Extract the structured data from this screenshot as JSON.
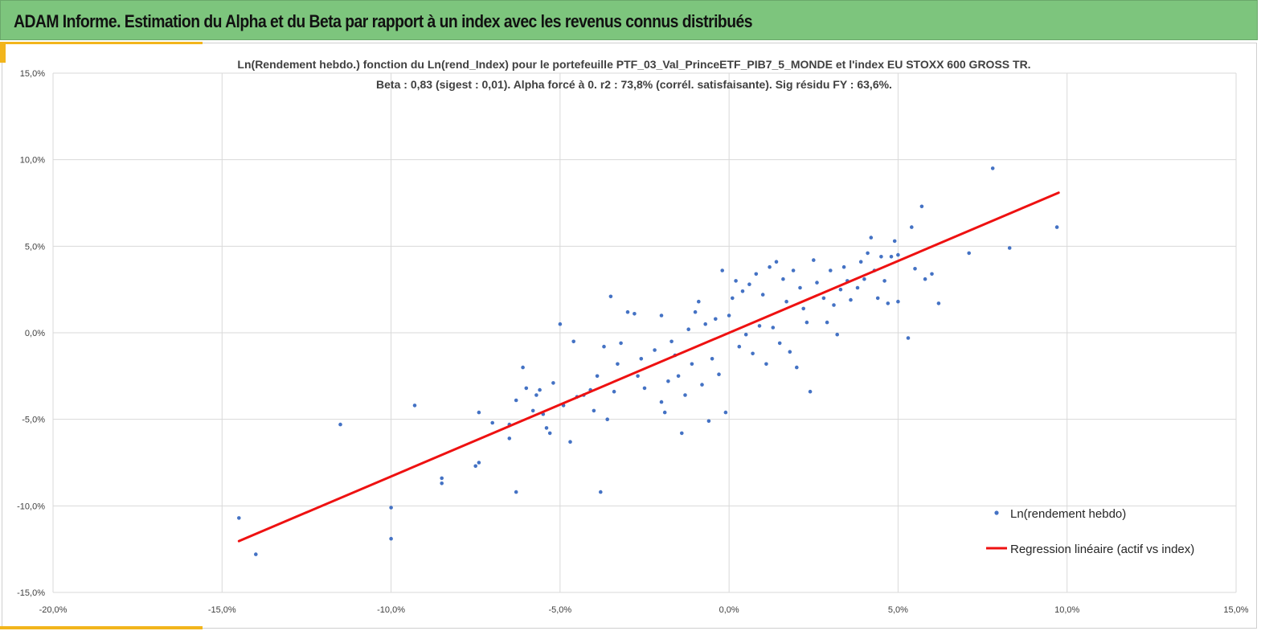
{
  "header": {
    "title": "ADAM Informe. Estimation du Alpha et du Beta par rapport à un index avec les revenus connus distribués"
  },
  "colors": {
    "banner": "#7dc57d",
    "accent": "#f2b51c",
    "points": "#4472c4",
    "regression": "#ee1111",
    "grid": "#d9d9d9"
  },
  "chart_data": {
    "type": "scatter",
    "title": "Ln(Rendement hebdo.) fonction du Ln(rend_Index) pour le portefeuille PTF_03_Val_PrinceETF_PIB7_5_MONDE et l'index EU STOXX 600 GROSS TR.",
    "subtitle": "Beta : 0,83 (sigest : 0,01). Alpha forcé à 0. r2 : 73,8% (corrél. satisfaisante). Sig résidu FY : 63,6%.",
    "xlabel": "",
    "ylabel": "",
    "xlim": [
      -0.2,
      0.15
    ],
    "ylim": [
      -0.15,
      0.15
    ],
    "xticks": [
      -0.2,
      -0.15,
      -0.1,
      -0.05,
      0.0,
      0.05,
      0.1,
      0.15
    ],
    "yticks": [
      -0.15,
      -0.1,
      -0.05,
      0.0,
      0.05,
      0.1,
      0.15
    ],
    "xtick_labels": [
      "-20,0%",
      "-15,0%",
      "-10,0%",
      "-5,0%",
      "0,0%",
      "5,0%",
      "10,0%",
      "15,0%"
    ],
    "ytick_labels": [
      "-15,0%",
      "-10,0%",
      "-5,0%",
      "0,0%",
      "5,0%",
      "10,0%",
      "15,0%"
    ],
    "grid": true,
    "legend_position": "bottom-right",
    "series": [
      {
        "name": "Ln(rendement hebdo)",
        "kind": "points",
        "points": [
          [
            -0.145,
            -0.107
          ],
          [
            -0.14,
            -0.128
          ],
          [
            -0.115,
            -0.053
          ],
          [
            -0.1,
            -0.101
          ],
          [
            -0.1,
            -0.119
          ],
          [
            -0.093,
            -0.042
          ],
          [
            -0.085,
            -0.084
          ],
          [
            -0.085,
            -0.087
          ],
          [
            -0.075,
            -0.077
          ],
          [
            -0.074,
            -0.075
          ],
          [
            -0.074,
            -0.046
          ],
          [
            -0.07,
            -0.052
          ],
          [
            -0.065,
            -0.061
          ],
          [
            -0.065,
            -0.053
          ],
          [
            -0.063,
            -0.092
          ],
          [
            -0.063,
            -0.039
          ],
          [
            -0.061,
            -0.02
          ],
          [
            -0.06,
            -0.032
          ],
          [
            -0.058,
            -0.045
          ],
          [
            -0.057,
            -0.036
          ],
          [
            -0.056,
            -0.033
          ],
          [
            -0.055,
            -0.047
          ],
          [
            -0.054,
            -0.055
          ],
          [
            -0.053,
            -0.058
          ],
          [
            -0.052,
            -0.029
          ],
          [
            -0.05,
            0.005
          ],
          [
            -0.049,
            -0.042
          ],
          [
            -0.047,
            -0.063
          ],
          [
            -0.046,
            -0.005
          ],
          [
            -0.045,
            -0.037
          ],
          [
            -0.043,
            -0.036
          ],
          [
            -0.041,
            -0.033
          ],
          [
            -0.04,
            -0.045
          ],
          [
            -0.039,
            -0.025
          ],
          [
            -0.038,
            -0.092
          ],
          [
            -0.037,
            -0.008
          ],
          [
            -0.036,
            -0.05
          ],
          [
            -0.035,
            0.021
          ],
          [
            -0.034,
            -0.034
          ],
          [
            -0.033,
            -0.018
          ],
          [
            -0.032,
            -0.006
          ],
          [
            -0.03,
            0.012
          ],
          [
            -0.028,
            0.011
          ],
          [
            -0.027,
            -0.025
          ],
          [
            -0.026,
            -0.015
          ],
          [
            -0.025,
            -0.032
          ],
          [
            -0.022,
            -0.01
          ],
          [
            -0.02,
            0.01
          ],
          [
            -0.02,
            -0.04
          ],
          [
            -0.019,
            -0.046
          ],
          [
            -0.018,
            -0.028
          ],
          [
            -0.017,
            -0.005
          ],
          [
            -0.016,
            -0.013
          ],
          [
            -0.015,
            -0.025
          ],
          [
            -0.014,
            -0.058
          ],
          [
            -0.013,
            -0.036
          ],
          [
            -0.012,
            0.002
          ],
          [
            -0.011,
            -0.018
          ],
          [
            -0.01,
            0.012
          ],
          [
            -0.009,
            0.018
          ],
          [
            -0.008,
            -0.03
          ],
          [
            -0.007,
            0.005
          ],
          [
            -0.006,
            -0.051
          ],
          [
            -0.005,
            -0.015
          ],
          [
            -0.004,
            0.008
          ],
          [
            -0.003,
            -0.024
          ],
          [
            -0.002,
            0.036
          ],
          [
            -0.001,
            -0.046
          ],
          [
            0.0,
            0.01
          ],
          [
            0.001,
            0.02
          ],
          [
            0.002,
            0.03
          ],
          [
            0.003,
            -0.008
          ],
          [
            0.004,
            0.024
          ],
          [
            0.005,
            -0.001
          ],
          [
            0.006,
            0.028
          ],
          [
            0.007,
            -0.012
          ],
          [
            0.008,
            0.034
          ],
          [
            0.009,
            0.004
          ],
          [
            0.01,
            0.022
          ],
          [
            0.011,
            -0.018
          ],
          [
            0.012,
            0.038
          ],
          [
            0.013,
            0.003
          ],
          [
            0.014,
            0.041
          ],
          [
            0.015,
            -0.006
          ],
          [
            0.016,
            0.031
          ],
          [
            0.017,
            0.018
          ],
          [
            0.018,
            -0.011
          ],
          [
            0.019,
            0.036
          ],
          [
            0.02,
            -0.02
          ],
          [
            0.021,
            0.026
          ],
          [
            0.022,
            0.014
          ],
          [
            0.023,
            0.006
          ],
          [
            0.024,
            -0.034
          ],
          [
            0.025,
            0.042
          ],
          [
            0.026,
            0.029
          ],
          [
            0.028,
            0.02
          ],
          [
            0.029,
            0.006
          ],
          [
            0.03,
            0.036
          ],
          [
            0.031,
            0.016
          ],
          [
            0.032,
            -0.001
          ],
          [
            0.033,
            0.025
          ],
          [
            0.034,
            0.038
          ],
          [
            0.035,
            0.03
          ],
          [
            0.036,
            0.019
          ],
          [
            0.038,
            0.026
          ],
          [
            0.039,
            0.041
          ],
          [
            0.04,
            0.031
          ],
          [
            0.041,
            0.046
          ],
          [
            0.042,
            0.055
          ],
          [
            0.043,
            0.036
          ],
          [
            0.044,
            0.02
          ],
          [
            0.045,
            0.044
          ],
          [
            0.046,
            0.03
          ],
          [
            0.047,
            0.017
          ],
          [
            0.048,
            0.044
          ],
          [
            0.049,
            0.053
          ],
          [
            0.05,
            0.018
          ],
          [
            0.05,
            0.045
          ],
          [
            0.053,
            -0.003
          ],
          [
            0.054,
            0.061
          ],
          [
            0.055,
            0.037
          ],
          [
            0.057,
            0.073
          ],
          [
            0.058,
            0.031
          ],
          [
            0.06,
            0.034
          ],
          [
            0.062,
            0.017
          ],
          [
            0.071,
            0.046
          ],
          [
            0.078,
            0.095
          ],
          [
            0.083,
            0.049
          ],
          [
            0.097,
            0.061
          ]
        ]
      },
      {
        "name": "Regression linéaire (actif vs index)",
        "kind": "line",
        "slope": 0.83,
        "intercept": 0.0,
        "x_range": [
          -0.145,
          0.0975
        ]
      }
    ]
  }
}
